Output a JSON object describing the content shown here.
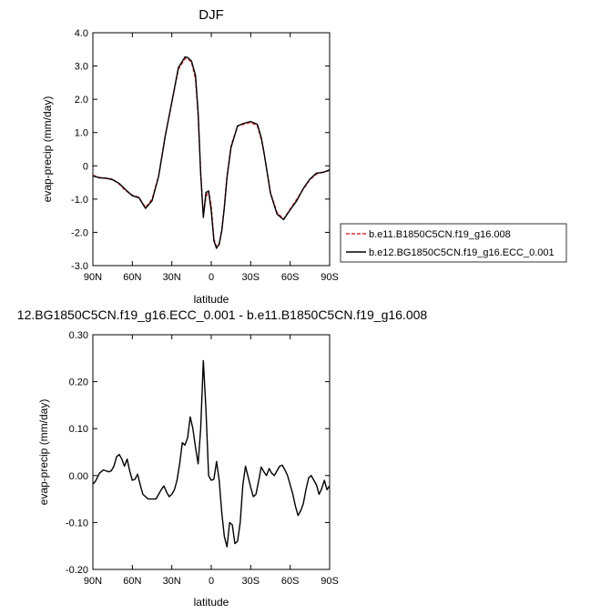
{
  "chart_data": [
    {
      "type": "line",
      "title": "DJF",
      "xlabel": "latitude",
      "ylabel": "evap-precip (mm/day)",
      "xlim": [
        90,
        -90
      ],
      "ylim": [
        -3.0,
        4.0
      ],
      "x_ticks": [
        90,
        60,
        30,
        0,
        -30,
        -60,
        -90
      ],
      "x_tick_labels": [
        "90N",
        "60N",
        "30N",
        "0",
        "30S",
        "60S",
        "90S"
      ],
      "y_ticks": [
        -3.0,
        -2.0,
        -1.0,
        0.0,
        1.0,
        2.0,
        3.0,
        4.0
      ],
      "y_tick_labels": [
        "-3.0",
        "-2.0",
        "-1.0",
        "0",
        "1.0",
        "2.0",
        "3.0",
        "4.0"
      ],
      "legend_position": "right",
      "x": [
        90,
        85,
        80,
        75,
        70,
        65,
        60,
        55,
        50,
        45,
        40,
        35,
        30,
        25,
        20,
        18,
        15,
        12,
        10,
        8,
        6,
        4,
        2,
        0,
        -2,
        -4,
        -6,
        -8,
        -10,
        -12,
        -15,
        -20,
        -25,
        -30,
        -35,
        -38,
        -40,
        -45,
        -50,
        -55,
        -60,
        -65,
        -70,
        -75,
        -80,
        -85,
        -90
      ],
      "series": [
        {
          "name": "b.e11.B1850C5CN.f19_g16.008",
          "color": "#e03030",
          "dash": "dashed",
          "values": [
            -0.28,
            -0.35,
            -0.38,
            -0.4,
            -0.55,
            -0.75,
            -0.88,
            -0.95,
            -1.25,
            -1.0,
            -0.3,
            0.9,
            1.9,
            2.9,
            3.22,
            3.22,
            3.12,
            2.6,
            1.5,
            -0.2,
            -1.45,
            -0.95,
            -0.75,
            -1.2,
            -2.2,
            -2.43,
            -2.38,
            -1.9,
            -1.2,
            -0.3,
            0.6,
            1.2,
            1.25,
            1.3,
            1.2,
            0.8,
            0.4,
            -0.8,
            -1.4,
            -1.6,
            -1.3,
            -1.0,
            -0.7,
            -0.42,
            -0.25,
            -0.18,
            -0.15
          ]
        },
        {
          "name": "b.e12.BG1850C5CN.f19_g16.ECC_0.001",
          "color": "#000000",
          "dash": "solid",
          "values": [
            -0.3,
            -0.36,
            -0.37,
            -0.42,
            -0.53,
            -0.72,
            -0.9,
            -0.96,
            -1.28,
            -1.05,
            -0.32,
            0.88,
            1.92,
            2.95,
            3.27,
            3.26,
            3.15,
            2.72,
            1.6,
            -0.25,
            -1.55,
            -0.8,
            -0.76,
            -1.35,
            -2.25,
            -2.48,
            -2.35,
            -1.95,
            -1.25,
            -0.35,
            0.55,
            1.2,
            1.28,
            1.33,
            1.25,
            0.85,
            0.42,
            -0.82,
            -1.45,
            -1.62,
            -1.32,
            -1.05,
            -0.68,
            -0.4,
            -0.22,
            -0.2,
            -0.12
          ]
        }
      ]
    },
    {
      "type": "line",
      "title": "12.BG1850C5CN.f19_g16.ECC_0.001 - b.e11.B1850C5CN.f19_g16.008",
      "xlabel": "latitude",
      "ylabel": "evap-precip (mm/day)",
      "xlim": [
        90,
        -90
      ],
      "ylim": [
        -0.2,
        0.3
      ],
      "x_ticks": [
        90,
        60,
        30,
        0,
        -30,
        -60,
        -90
      ],
      "x_tick_labels": [
        "90N",
        "60N",
        "30N",
        "0",
        "30S",
        "60S",
        "90S"
      ],
      "y_ticks": [
        -0.2,
        -0.1,
        0.0,
        0.1,
        0.2,
        0.3
      ],
      "y_tick_labels": [
        "-0.20",
        "-0.10",
        "0.00",
        "0.10",
        "0.20",
        "0.30"
      ],
      "x": [
        90,
        88,
        85,
        82,
        80,
        78,
        76,
        74,
        72,
        70,
        68,
        66,
        64,
        62,
        60,
        58,
        56,
        54,
        52,
        50,
        48,
        46,
        44,
        42,
        40,
        38,
        36,
        34,
        32,
        30,
        28,
        26,
        24,
        22,
        20,
        18,
        16,
        14,
        12,
        10,
        8,
        6,
        4,
        2,
        0,
        -2,
        -4,
        -6,
        -8,
        -10,
        -12,
        -14,
        -16,
        -18,
        -20,
        -22,
        -24,
        -26,
        -28,
        -30,
        -32,
        -34,
        -36,
        -38,
        -40,
        -42,
        -44,
        -46,
        -48,
        -50,
        -52,
        -54,
        -56,
        -58,
        -60,
        -62,
        -64,
        -66,
        -68,
        -70,
        -72,
        -74,
        -76,
        -78,
        -80,
        -82,
        -84,
        -86,
        -88,
        -90
      ],
      "series": [
        {
          "name": "",
          "color": "#000000",
          "dash": "solid",
          "values": [
            -0.018,
            -0.012,
            0.005,
            0.012,
            0.01,
            0.008,
            0.01,
            0.02,
            0.04,
            0.045,
            0.035,
            0.02,
            0.035,
            0.01,
            -0.01,
            -0.008,
            0.003,
            -0.02,
            -0.04,
            -0.045,
            -0.05,
            -0.05,
            -0.05,
            -0.05,
            -0.04,
            -0.03,
            -0.022,
            -0.035,
            -0.045,
            -0.04,
            -0.03,
            -0.01,
            0.025,
            0.07,
            0.065,
            0.08,
            0.125,
            0.1,
            0.06,
            0.025,
            0.1,
            0.245,
            0.14,
            0.0,
            -0.01,
            -0.008,
            0.03,
            -0.01,
            -0.08,
            -0.13,
            -0.152,
            -0.1,
            -0.105,
            -0.145,
            -0.14,
            -0.1,
            -0.02,
            0.02,
            -0.002,
            -0.025,
            -0.045,
            -0.04,
            -0.012,
            0.018,
            0.008,
            0.0,
            0.015,
            0.005,
            0.0,
            0.01,
            0.02,
            0.022,
            0.012,
            0.0,
            -0.02,
            -0.04,
            -0.065,
            -0.085,
            -0.075,
            -0.06,
            -0.03,
            -0.005,
            0.0,
            -0.01,
            -0.02,
            -0.04,
            -0.028,
            -0.01,
            -0.03,
            -0.022
          ]
        }
      ]
    }
  ],
  "legend": {
    "entries": [
      "b.e11.B1850C5CN.f19_g16.008",
      "b.e12.BG1850C5CN.f19_g16.ECC_0.001"
    ]
  }
}
